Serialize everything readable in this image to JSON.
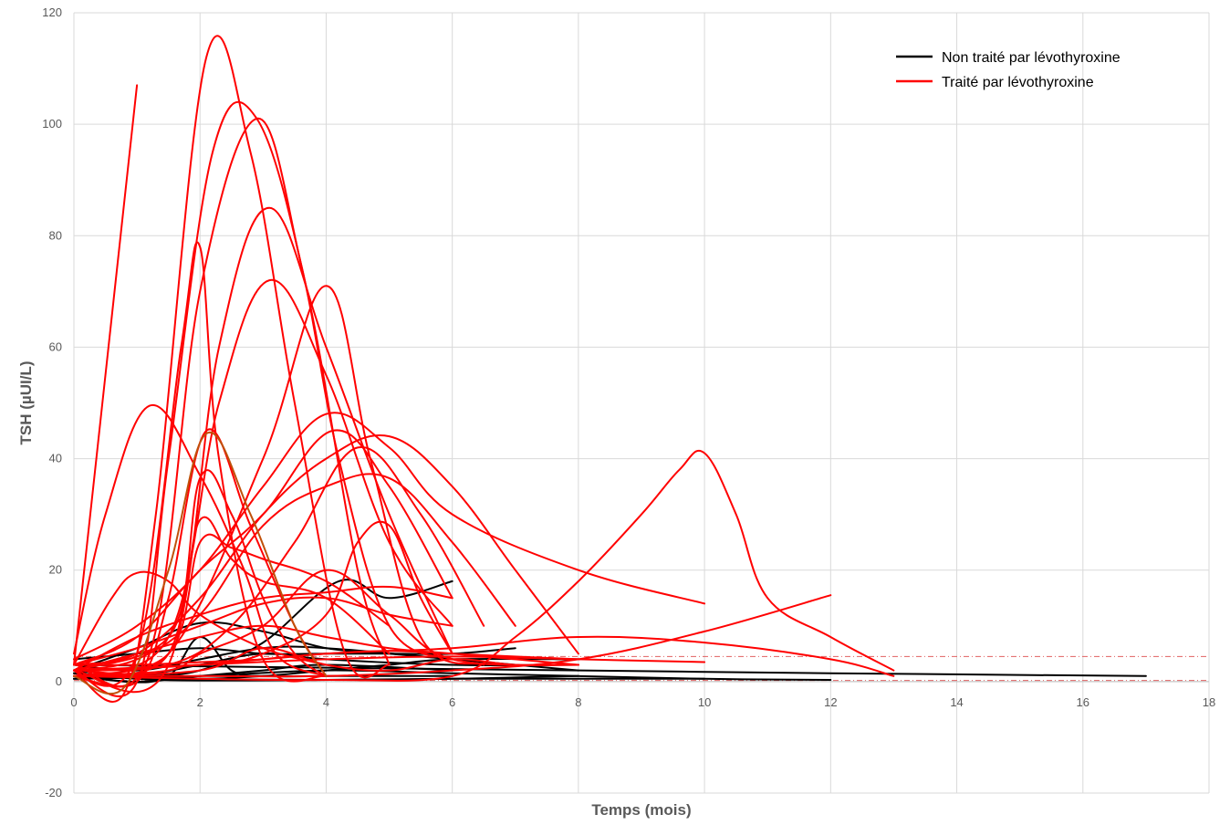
{
  "chart_data": {
    "type": "line",
    "xlabel": "Temps (mois)",
    "ylabel": "TSH (µUI/L)",
    "xlim": [
      0,
      18
    ],
    "ylim": [
      -20,
      120
    ],
    "x_ticks": [
      0,
      2,
      4,
      6,
      8,
      10,
      12,
      14,
      16,
      18
    ],
    "y_ticks": [
      -20,
      0,
      20,
      40,
      60,
      80,
      100,
      120
    ],
    "grid": true,
    "legend_position": "top-right",
    "legend": [
      {
        "label": "Non traité par lévothyroxine",
        "color": "#000000"
      },
      {
        "label": "Traité par lévothyroxine",
        "color": "#ff0000"
      }
    ],
    "reference_lines": [
      {
        "y": 4.5,
        "color": "#e06060",
        "style": "dash-dot"
      },
      {
        "y": 0.2,
        "color": "#e06060",
        "style": "dash-dot"
      }
    ],
    "series": [
      {
        "group": "untreated",
        "x": [
          0,
          1,
          2,
          3,
          4,
          5,
          6
        ],
        "y": [
          2,
          6,
          10.5,
          9,
          6,
          5,
          4
        ]
      },
      {
        "group": "untreated",
        "x": [
          0,
          1,
          2,
          3,
          4.2,
          5,
          6
        ],
        "y": [
          1.5,
          1,
          2,
          7,
          18,
          15,
          18
        ]
      },
      {
        "group": "untreated",
        "x": [
          0,
          1,
          2,
          3,
          4,
          6,
          8
        ],
        "y": [
          3,
          2,
          4,
          6,
          6,
          4,
          2
        ]
      },
      {
        "group": "untreated",
        "x": [
          0,
          1,
          2,
          3,
          4,
          5,
          6,
          7
        ],
        "y": [
          4,
          5,
          6,
          5,
          5,
          5,
          5,
          6
        ]
      },
      {
        "group": "untreated",
        "x": [
          0,
          1,
          2,
          3,
          4,
          6
        ],
        "y": [
          1,
          0,
          1,
          2,
          3,
          2
        ]
      },
      {
        "group": "untreated",
        "x": [
          0,
          0.8,
          1.5,
          2,
          2.5,
          3,
          4,
          6
        ],
        "y": [
          2,
          0,
          1,
          8,
          2,
          1,
          1,
          1
        ]
      },
      {
        "group": "untreated",
        "x": [
          0,
          2,
          4,
          6,
          8,
          10,
          12
        ],
        "y": [
          0.5,
          1,
          2,
          1.5,
          1,
          0.5,
          0.3
        ]
      },
      {
        "group": "untreated",
        "x": [
          0,
          4,
          8,
          12,
          17
        ],
        "y": [
          3,
          2.5,
          2,
          1.5,
          1
        ]
      },
      {
        "group": "untreated",
        "x": [
          0,
          2,
          4,
          6,
          8
        ],
        "y": [
          1,
          0.5,
          0.3,
          0.5,
          1
        ]
      },
      {
        "group": "untreated",
        "x": [
          0,
          1,
          2,
          3,
          4,
          6,
          8
        ],
        "y": [
          0.5,
          1,
          3,
          5,
          4,
          3,
          3
        ]
      },
      {
        "group": "untreated",
        "x": [
          0,
          1,
          2,
          3,
          4,
          5,
          6,
          8
        ],
        "y": [
          2,
          1,
          0.5,
          1,
          2,
          3,
          4,
          4
        ]
      },
      {
        "group": "untreated",
        "x": [
          0,
          1,
          2,
          4,
          6,
          8,
          10
        ],
        "y": [
          1.5,
          0.5,
          0.2,
          0.3,
          0.5,
          0.5,
          0.5
        ]
      },
      {
        "group": "treated",
        "x": [
          0,
          1
        ],
        "y": [
          3,
          107
        ]
      },
      {
        "group": "treated",
        "x": [
          0,
          0.8,
          1.3,
          2.1,
          2.8,
          3.5,
          4.3,
          5
        ],
        "y": [
          2,
          -2,
          30,
          112,
          95,
          50,
          5,
          3
        ]
      },
      {
        "group": "treated",
        "x": [
          0,
          1,
          1.5,
          2.2,
          2.9,
          3.7,
          4.5,
          5
        ],
        "y": [
          2,
          0,
          40,
          95,
          101,
          70,
          20,
          3
        ]
      },
      {
        "group": "treated",
        "x": [
          0,
          1.2,
          2,
          2.9,
          3.6,
          4.2,
          5,
          6
        ],
        "y": [
          3,
          5,
          70,
          101,
          75,
          40,
          10,
          4
        ]
      },
      {
        "group": "treated",
        "x": [
          0,
          1.5,
          2.3,
          3.1,
          4,
          5,
          6
        ],
        "y": [
          2,
          3,
          60,
          85,
          60,
          30,
          5
        ]
      },
      {
        "group": "treated",
        "x": [
          0,
          1,
          1.7,
          2,
          2.3,
          3,
          4
        ],
        "y": [
          1,
          5,
          60,
          78,
          40,
          4,
          1
        ]
      },
      {
        "group": "treated",
        "x": [
          0,
          1.5,
          2.3,
          3.1,
          4,
          5,
          6
        ],
        "y": [
          2,
          8,
          50,
          72,
          55,
          25,
          10
        ]
      },
      {
        "group": "treated",
        "x": [
          0,
          1.5,
          3,
          4,
          4.7,
          5.5,
          6.5
        ],
        "y": [
          2,
          5,
          40,
          71,
          40,
          8,
          3
        ]
      },
      {
        "group": "treated",
        "x": [
          0,
          0.5,
          1.2,
          2,
          2.7,
          3.2,
          4
        ],
        "y": [
          5,
          30,
          49.5,
          37,
          20,
          5,
          1
        ]
      },
      {
        "group": "treated",
        "x": [
          0,
          1,
          1.5,
          2.1,
          2.8,
          3.5,
          4
        ],
        "y": [
          1,
          0,
          15,
          45,
          28,
          10,
          1
        ]
      },
      {
        "group": "treated",
        "x": [
          0,
          1,
          2,
          3,
          4.1,
          5,
          6
        ],
        "y": [
          3,
          8,
          20,
          30,
          45,
          35,
          15
        ]
      },
      {
        "group": "treated",
        "x": [
          0,
          1.5,
          2.5,
          3.5,
          4.5,
          5.5,
          6.5
        ],
        "y": [
          2,
          3,
          10,
          25,
          42,
          30,
          10
        ]
      },
      {
        "group": "treated",
        "x": [
          0,
          1,
          2,
          3,
          4,
          5,
          6,
          7,
          8
        ],
        "y": [
          3,
          5,
          15,
          30,
          40,
          44,
          35,
          20,
          5
        ]
      },
      {
        "group": "treated",
        "x": [
          0,
          1,
          2,
          3,
          4,
          5,
          6,
          7
        ],
        "y": [
          2,
          4,
          12,
          28,
          35,
          36.5,
          25,
          10
        ]
      },
      {
        "group": "treated",
        "x": [
          0,
          1,
          2,
          3,
          4,
          5,
          6,
          8,
          10
        ],
        "y": [
          4,
          10,
          20,
          35,
          48,
          42,
          30,
          20,
          14
        ]
      },
      {
        "group": "treated",
        "x": [
          0,
          1.5,
          2,
          2.5,
          3,
          3.5,
          4
        ],
        "y": [
          2,
          5,
          36.5,
          30,
          15,
          5,
          1
        ]
      },
      {
        "group": "treated",
        "x": [
          0,
          1.5,
          2,
          2.5,
          3,
          4,
          5
        ],
        "y": [
          2,
          8,
          29,
          22,
          18,
          15,
          5
        ]
      },
      {
        "group": "treated",
        "x": [
          0,
          1.5,
          2,
          2.5,
          3,
          4,
          5
        ],
        "y": [
          1,
          5,
          25,
          24,
          22,
          18,
          10
        ]
      },
      {
        "group": "treated",
        "x": [
          0,
          0.6,
          1,
          1.5,
          2,
          3,
          4
        ],
        "y": [
          3,
          15,
          19.5,
          18,
          12,
          6,
          3
        ]
      },
      {
        "group": "treated",
        "x": [
          0,
          1,
          2,
          3,
          4,
          5,
          6
        ],
        "y": [
          2,
          8,
          12,
          15,
          16,
          17,
          15
        ]
      },
      {
        "group": "treated",
        "x": [
          0,
          1,
          2,
          3,
          4,
          5,
          6
        ],
        "y": [
          3,
          6,
          10,
          14,
          15,
          12,
          10
        ]
      },
      {
        "group": "treated",
        "x": [
          0,
          1,
          2,
          3,
          4,
          5,
          6,
          7,
          8
        ],
        "y": [
          2,
          5,
          8,
          10,
          8,
          6,
          5,
          4,
          3
        ]
      },
      {
        "group": "treated",
        "x": [
          0,
          2,
          4,
          6,
          8,
          10,
          12,
          13
        ],
        "y": [
          2,
          3,
          5,
          6,
          8,
          7,
          4,
          1
        ]
      },
      {
        "group": "treated",
        "x": [
          0,
          2,
          4,
          6,
          7,
          8,
          9,
          9.6,
          10,
          10.5,
          11,
          12,
          13
        ],
        "y": [
          1,
          0.5,
          0.3,
          1,
          8,
          18,
          30,
          38,
          41,
          30,
          15,
          8,
          2
        ]
      },
      {
        "group": "treated",
        "x": [
          0,
          2,
          4,
          6,
          8,
          10,
          12
        ],
        "y": [
          1,
          1,
          1,
          2,
          4,
          9,
          15.5
        ]
      },
      {
        "group": "treated",
        "x": [
          0,
          2,
          4,
          6,
          8,
          10
        ],
        "y": [
          2,
          3,
          4,
          4.5,
          4,
          3.5
        ]
      },
      {
        "group": "treated",
        "x": [
          0,
          2,
          3,
          4,
          5,
          6,
          7,
          8
        ],
        "y": [
          1,
          2,
          6,
          3,
          2,
          4,
          3,
          3
        ]
      },
      {
        "group": "treated",
        "x": [
          0,
          2,
          3,
          4,
          4.5,
          5,
          5.5,
          6
        ],
        "y": [
          2,
          3,
          5,
          12,
          25,
          28,
          15,
          5
        ]
      },
      {
        "group": "treated",
        "x": [
          0,
          1.5,
          2,
          3,
          4,
          5,
          6,
          8
        ],
        "y": [
          1,
          2,
          5,
          10,
          20,
          12,
          4,
          3
        ]
      },
      {
        "group": "treated",
        "x": [
          0,
          1,
          2,
          3,
          4,
          5,
          6,
          8
        ],
        "y": [
          3,
          3,
          3.5,
          4,
          5,
          5.5,
          5,
          4
        ]
      },
      {
        "group": "treated",
        "x": [
          0,
          0.8,
          1.5,
          2.1,
          2.8,
          3.5,
          4
        ],
        "y": [
          1,
          -1,
          20,
          44.5,
          30,
          10,
          1
        ],
        "color": "#c0500a"
      }
    ]
  }
}
